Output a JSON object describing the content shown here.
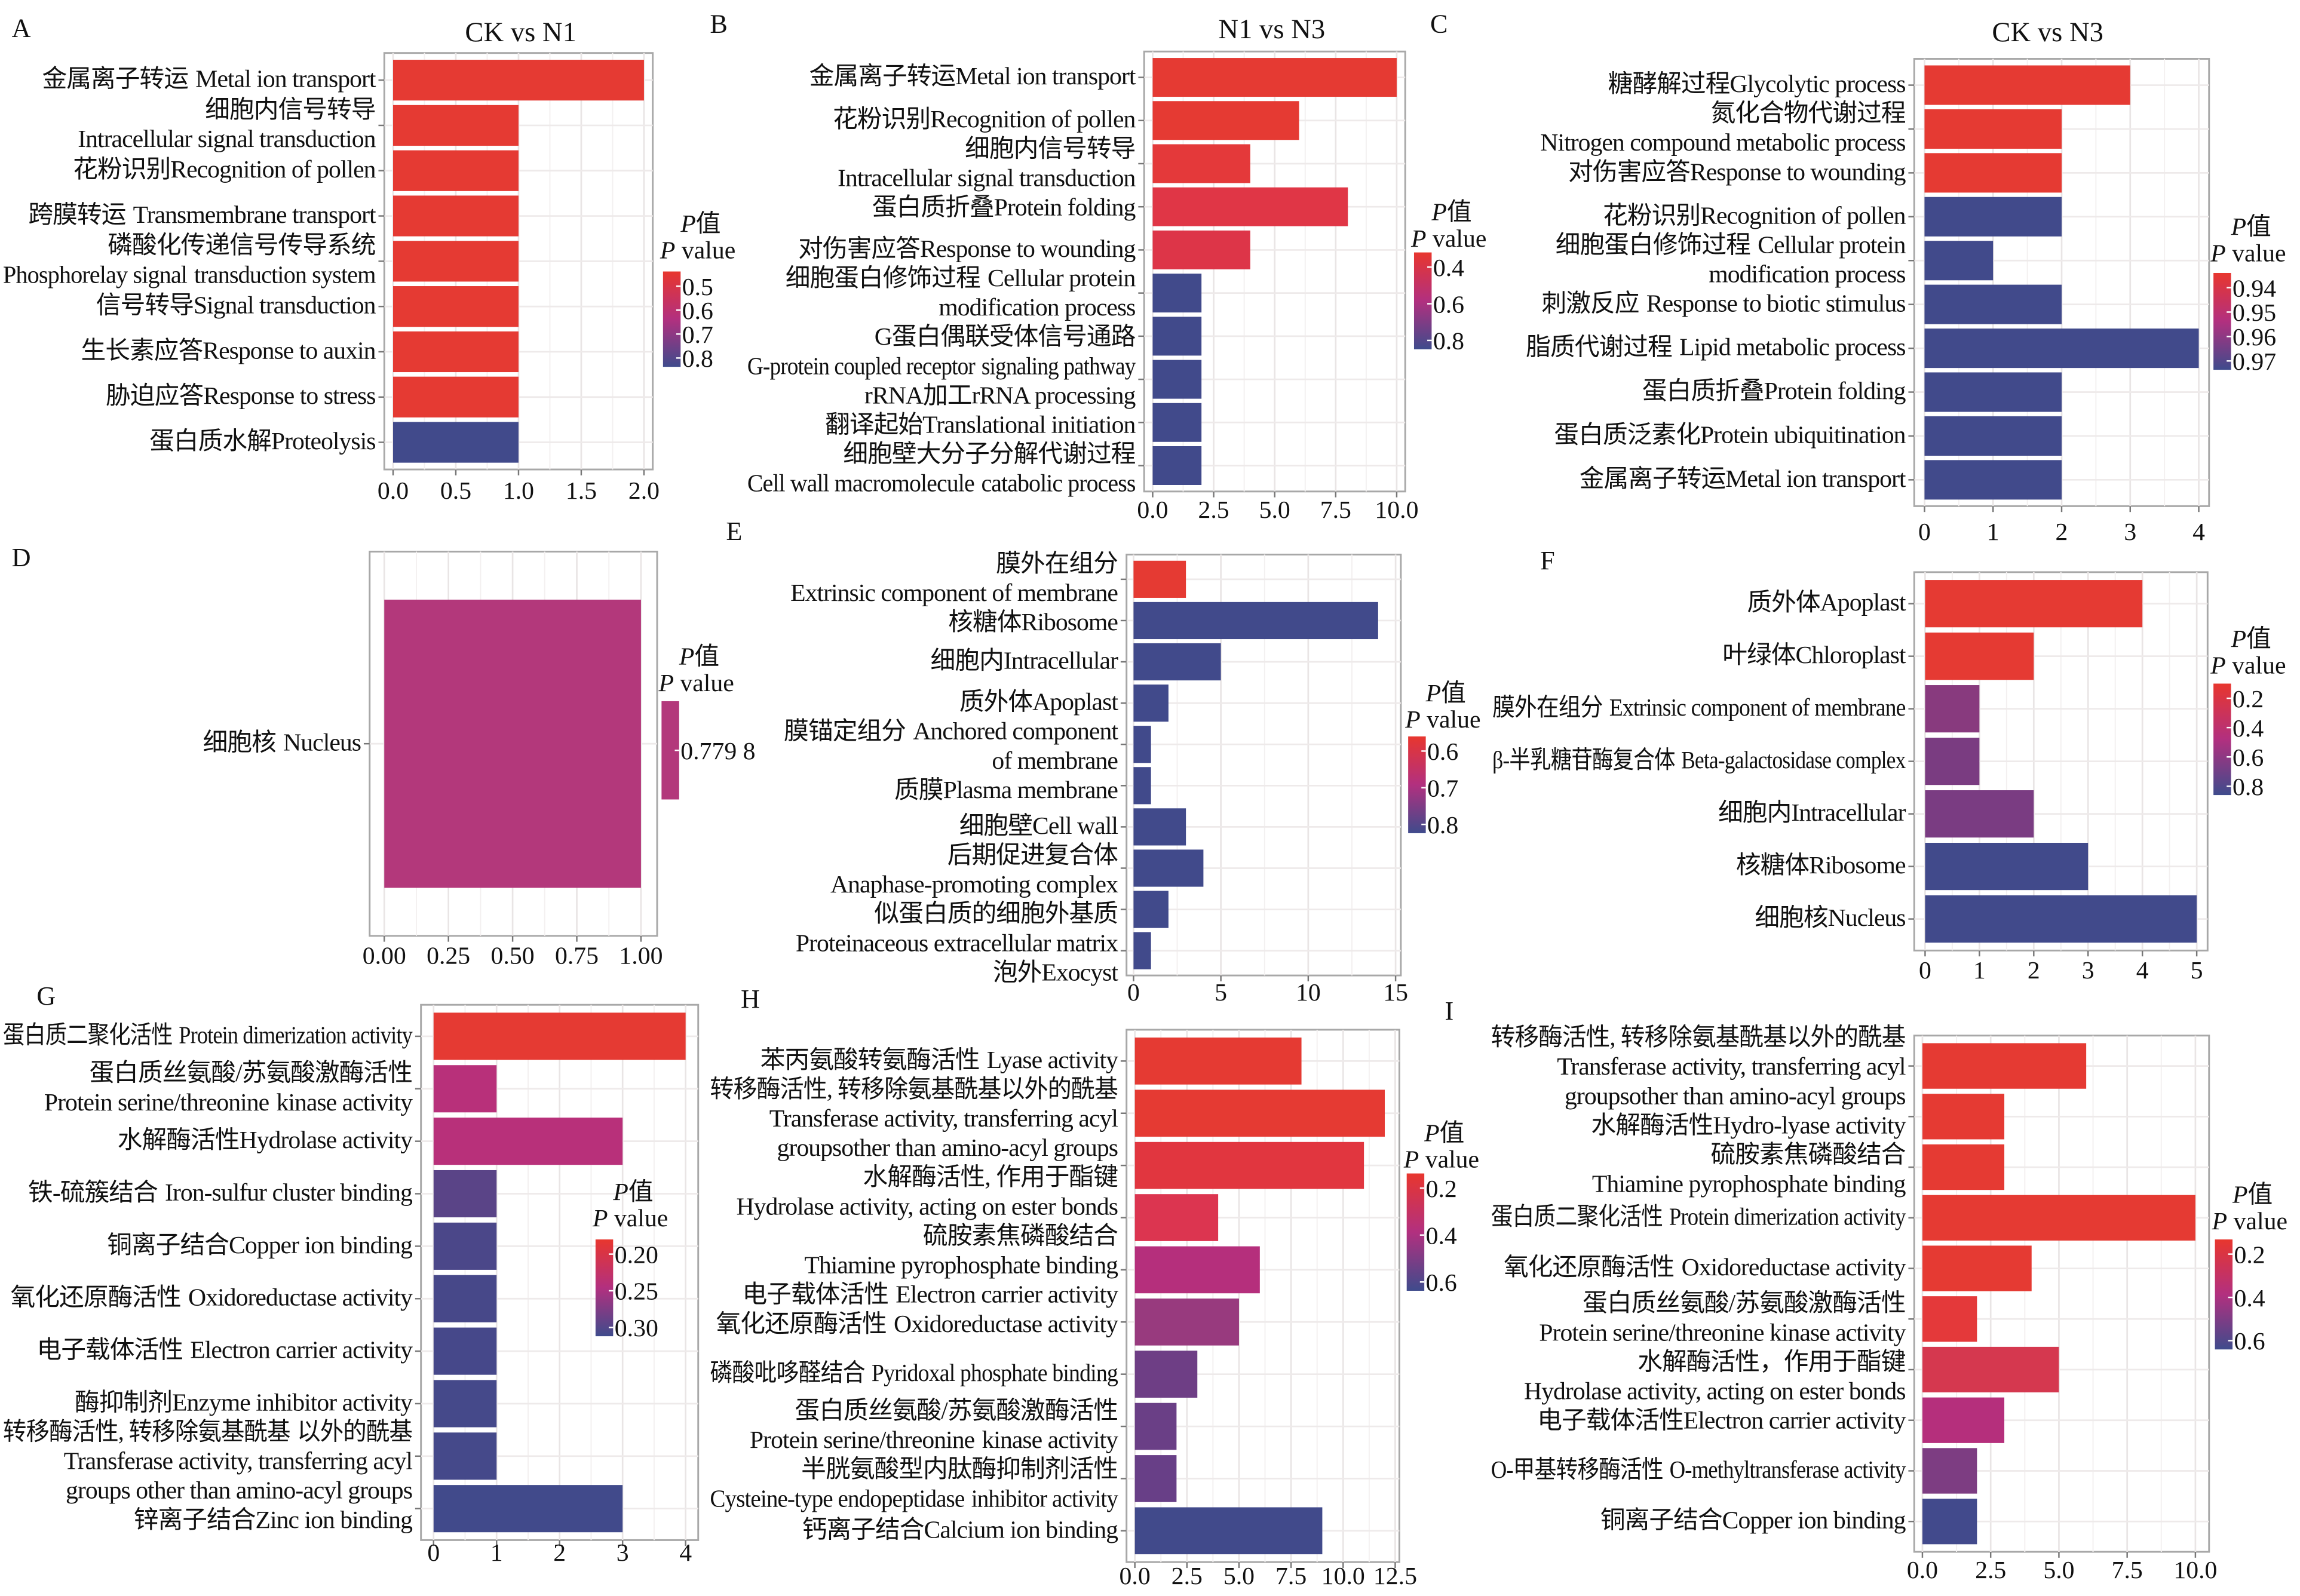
{
  "chart_data": [
    {
      "panel": "A",
      "type": "bar",
      "orientation": "horizontal",
      "title": "CK vs N1",
      "categories": [
        [
          "金属离子转运",
          "Metal ion transport"
        ],
        [
          "细胞内信号转导",
          "Intracellular signal transduction"
        ],
        [
          "花粉识别Recognition of pollen"
        ],
        [
          "跨膜转运",
          "Transmembrane transport"
        ],
        [
          "磷酸化传递信号传导系统",
          "Phosphorelay signal",
          "transduction system"
        ],
        [
          "信号转导Signal transduction"
        ],
        [
          "生长素应答Response to auxin"
        ],
        [
          "胁迫应答Response to stress"
        ],
        [
          "蛋白质水解Proteolysis"
        ]
      ],
      "values": [
        2,
        1,
        1,
        1,
        1,
        1,
        1,
        1,
        1
      ],
      "colors": [
        "#E53A33",
        "#E53A33",
        "#E53A33",
        "#E53A33",
        "#E53A33",
        "#E53A33",
        "#E53A33",
        "#E53A33",
        "#414A8B"
      ],
      "xticks": [
        "0.0",
        "0.5",
        "1.0",
        "1.5",
        "2.0"
      ],
      "xtick_values": [
        0,
        0.5,
        1,
        1.5,
        2
      ],
      "xlim": [
        -0.07,
        2.07
      ],
      "legend": {
        "title_cn": "P值",
        "title_en": "P value",
        "ticks": [
          "0.5",
          "0.6",
          "0.7",
          "0.8"
        ]
      }
    },
    {
      "panel": "B",
      "type": "bar",
      "orientation": "horizontal",
      "title": "N1 vs N3",
      "categories": [
        [
          "金属离子转运Metal ion transport"
        ],
        [
          "花粉识别Recognition of pollen"
        ],
        [
          "细胞内信号转导",
          "Intracellular signal transduction"
        ],
        [
          "蛋白质折叠Protein folding"
        ],
        [
          "对伤害应答Response to wounding"
        ],
        [
          "细胞蛋白修饰过程",
          "Cellular protein",
          "modification process"
        ],
        [
          "G蛋白偶联受体信号通路",
          "G-protein coupled receptor",
          "signaling pathway"
        ],
        [
          "rRNA加工rRNA processing"
        ],
        [
          "翻译起始Translational initiation"
        ],
        [
          "细胞壁大分子分解代谢过程",
          "Cell wall macromolecule",
          "catabolic process"
        ]
      ],
      "values": [
        10,
        6,
        4,
        8,
        4,
        2,
        2,
        2,
        2,
        2
      ],
      "colors": [
        "#E53A33",
        "#E53A33",
        "#E4393A",
        "#E03646",
        "#DD3548",
        "#414A8B",
        "#414A8B",
        "#414A8B",
        "#414A8B",
        "#414A8B"
      ],
      "xticks": [
        "0.0",
        "2.5",
        "5.0",
        "7.5",
        "10.0"
      ],
      "xtick_values": [
        0,
        2.5,
        5,
        7.5,
        10
      ],
      "xlim": [
        -0.35,
        10.35
      ],
      "legend": {
        "title_cn": "P值",
        "title_en": "P value",
        "ticks": [
          "0.4",
          "0.6",
          "0.8"
        ]
      }
    },
    {
      "panel": "C",
      "type": "bar",
      "orientation": "horizontal",
      "title": "CK vs N3",
      "categories": [
        [
          "糖酵解过程Glycolytic process"
        ],
        [
          "氮化合物代谢过程",
          "Nitrogen compound metabolic process"
        ],
        [
          "对伤害应答Response to wounding"
        ],
        [
          "花粉识别Recognition of pollen"
        ],
        [
          "细胞蛋白修饰过程",
          "Cellular protein",
          "modification process"
        ],
        [
          "刺激反应",
          "Response to biotic stimulus"
        ],
        [
          "脂质代谢过程",
          "Lipid metabolic process"
        ],
        [
          "蛋白质折叠Protein folding"
        ],
        [
          "蛋白质泛素化Protein ubiquitination"
        ],
        [
          "金属离子转运Metal ion transport"
        ]
      ],
      "values": [
        3,
        2,
        2,
        2,
        1,
        2,
        4,
        2,
        2,
        2
      ],
      "colors": [
        "#E53A33",
        "#E53A33",
        "#E53A33",
        "#414A8B",
        "#414A8B",
        "#414A8B",
        "#414A8B",
        "#414A8B",
        "#414A8B",
        "#414A8B"
      ],
      "xticks": [
        "0",
        "1",
        "2",
        "3",
        "4"
      ],
      "xtick_values": [
        0,
        1,
        2,
        3,
        4
      ],
      "xlim": [
        -0.15,
        4.15
      ],
      "legend": {
        "title_cn": "P值",
        "title_en": "P value",
        "ticks": [
          "0.94",
          "0.95",
          "0.96",
          "0.97"
        ]
      }
    },
    {
      "panel": "D",
      "type": "bar",
      "orientation": "horizontal",
      "title": "",
      "categories": [
        [
          "细胞核",
          "Nucleus"
        ]
      ],
      "values": [
        1
      ],
      "colors": [
        "#B3387B"
      ],
      "xticks": [
        "0.00",
        "0.25",
        "0.50",
        "0.75",
        "1.00"
      ],
      "xtick_values": [
        0,
        0.25,
        0.5,
        0.75,
        1
      ],
      "xlim": [
        -0.057,
        1.063
      ],
      "legend": {
        "title_cn": "P值",
        "title_en": "P value",
        "ticks": [
          "0.779 8"
        ],
        "single_color": "#B3387B"
      }
    },
    {
      "panel": "E",
      "type": "bar",
      "orientation": "horizontal",
      "title": "",
      "categories": [
        [
          "膜外在组分",
          "Extrinsic component of membrane"
        ],
        [
          "核糖体Ribosome"
        ],
        [
          "细胞内Intracellular"
        ],
        [
          "质外体Apoplast"
        ],
        [
          "膜锚定组分",
          "Anchored component",
          "of membrane"
        ],
        [
          "质膜Plasma membrane"
        ],
        [
          "细胞壁Cell wall"
        ],
        [
          "后期促进复合体",
          "Anaphase-promoting complex"
        ],
        [
          "似蛋白质的细胞外基质",
          "Proteinaceous extracellular matrix"
        ],
        [
          "泡外Exocyst"
        ]
      ],
      "values": [
        3,
        14,
        5,
        2,
        1,
        1,
        3,
        4,
        2,
        1
      ],
      "colors": [
        "#E53A33",
        "#414A8B",
        "#414A8B",
        "#414A8B",
        "#414A8B",
        "#414A8B",
        "#414A8B",
        "#414A8B",
        "#414A8B",
        "#414A8B"
      ],
      "xticks": [
        "0",
        "5",
        "10",
        "15"
      ],
      "xtick_values": [
        0,
        5,
        10,
        15
      ],
      "xlim": [
        -0.4,
        15.3
      ],
      "legend": {
        "title_cn": "P值",
        "title_en": "P value",
        "ticks": [
          "0.6",
          "0.7",
          "0.8"
        ]
      }
    },
    {
      "panel": "F",
      "type": "bar",
      "orientation": "horizontal",
      "title": "",
      "categories": [
        [
          "质外体Apoplast"
        ],
        [
          "叶绿体Chloroplast"
        ],
        [
          "膜外在组分",
          "Extrinsic component of membrane"
        ],
        [
          "β-半乳糖苷酶复合体",
          "Beta-galactosidase complex"
        ],
        [
          "细胞内Intracellular"
        ],
        [
          "核糖体Ribosome"
        ],
        [
          "细胞核Nucleus"
        ]
      ],
      "values": [
        4,
        2,
        1,
        1,
        2,
        3,
        5
      ],
      "colors": [
        "#E53A33",
        "#E53A33",
        "#883A7E",
        "#7A3C81",
        "#7A3C82",
        "#414A8B",
        "#414A8B"
      ],
      "xticks": [
        "0",
        "1",
        "2",
        "3",
        "4",
        "5"
      ],
      "xtick_values": [
        0,
        1,
        2,
        3,
        4,
        5
      ],
      "xlim": [
        -0.2,
        5.2
      ],
      "legend": {
        "title_cn": "P值",
        "title_en": "P value",
        "ticks": [
          "0.2",
          "0.4",
          "0.6",
          "0.8"
        ]
      }
    },
    {
      "panel": "G",
      "type": "bar",
      "orientation": "horizontal",
      "title": "",
      "categories": [
        [
          "蛋白质二聚化活性",
          "Protein dimerization activity"
        ],
        [
          "蛋白质丝氨酸/苏氨酸激酶活性",
          "Protein serine/threonine",
          "kinase activity"
        ],
        [
          "水解酶活性Hydrolase activity"
        ],
        [
          "铁-硫簇结合",
          "Iron-sulfur cluster binding"
        ],
        [
          "铜离子结合Copper ion binding"
        ],
        [
          "氧化还原酶活性",
          "Oxidoreductase activity"
        ],
        [
          "电子载体活性",
          "Electron carrier activity"
        ],
        [
          "酶抑制剂Enzyme inhibitor activity"
        ],
        [
          "转移酶活性, 转移除氨基酰基",
          "以外的酰基",
          "Transferase activity, transferring acyl",
          "groups other than amino-acyl groups"
        ],
        [
          "锌离子结合Zinc ion binding"
        ]
      ],
      "values": [
        4,
        1,
        3,
        1,
        1,
        1,
        1,
        1,
        1,
        3
      ],
      "colors": [
        "#E53A33",
        "#B8307A",
        "#B8307A",
        "#5A4487",
        "#4B4789",
        "#474889",
        "#46488A",
        "#45498A",
        "#45498A",
        "#414A8B"
      ],
      "xticks": [
        "0",
        "1",
        "2",
        "3",
        "4"
      ],
      "xtick_values": [
        0,
        1,
        2,
        3,
        4
      ],
      "xlim": [
        -0.2,
        4.2
      ],
      "legend": {
        "title_cn": "P值",
        "title_en": "P value",
        "ticks": [
          "0.20",
          "0.25",
          "0.30"
        ]
      }
    },
    {
      "panel": "H",
      "type": "bar",
      "orientation": "horizontal",
      "title": "",
      "categories": [
        [
          "苯丙氨酸转氨酶活性",
          "Lyase activity"
        ],
        [
          "转移酶活性, 转移除氨基酰基以外的酰基",
          "Transferase activity, transferring acyl",
          "groupsother than amino-acyl groups"
        ],
        [
          "水解酶活性, 作用于酯键",
          "Hydrolase activity, acting on ester bonds"
        ],
        [
          "硫胺素焦磷酸结合",
          "Thiamine pyrophosphate binding"
        ],
        [
          "电子载体活性",
          "Electron carrier activity"
        ],
        [
          "氧化还原酶活性",
          "Oxidoreductase activity"
        ],
        [
          "磷酸吡哆醛结合",
          "Pyridoxal phosphate binding"
        ],
        [
          "蛋白质丝氨酸/苏氨酸激酶活性",
          "Protein serine/threonine",
          "kinase activity"
        ],
        [
          "半胱氨酸型内肽酶抑制剂活性",
          "Cysteine-type endopeptidase",
          "inhibitor activity"
        ],
        [
          "钙离子结合Calcium ion binding"
        ]
      ],
      "values": [
        8,
        12,
        11,
        4,
        6,
        5,
        3,
        2,
        2,
        9
      ],
      "colors": [
        "#E53A33",
        "#E53A33",
        "#E1363F",
        "#DC3550",
        "#B52F7C",
        "#983A7E",
        "#6E3E85",
        "#6A3F86",
        "#683F87",
        "#414A8B"
      ],
      "xticks": [
        "0.0",
        "2.5",
        "5.0",
        "7.5",
        "10.0",
        "12.5"
      ],
      "xtick_values": [
        0,
        2.5,
        5,
        7.5,
        10,
        12.5
      ],
      "xlim": [
        -0.4,
        12.7
      ],
      "legend": {
        "title_cn": "P值",
        "title_en": "P value",
        "ticks": [
          "0.2",
          "0.4",
          "0.6"
        ]
      }
    },
    {
      "panel": "I",
      "type": "bar",
      "orientation": "horizontal",
      "title": "",
      "categories": [
        [
          "转移酶活性, 转移除氨基酰基以外的酰基",
          "Transferase activity, transferring acyl",
          "groupsother than amino-acyl groups"
        ],
        [
          "水解酶活性Hydro-lyase activity"
        ],
        [
          "硫胺素焦磷酸结合",
          "Thiamine pyrophosphate binding"
        ],
        [
          "蛋白质二聚化活性",
          "Protein dimerization activity"
        ],
        [
          "氧化还原酶活性",
          "Oxidoreductase activity"
        ],
        [
          "蛋白质丝氨酸/苏氨酸激酶活性",
          "Protein serine/threonine kinase activity"
        ],
        [
          "水解酶活性，作用于酯键",
          "Hydrolase activity, acting on ester bonds"
        ],
        [
          "电子载体活性Electron carrier activity"
        ],
        [
          "O-甲基转移酶活性",
          "O-methyltransferase activity"
        ],
        [
          "铜离子结合Copper ion binding"
        ]
      ],
      "values": [
        6,
        3,
        3,
        10,
        4,
        2,
        5,
        3,
        2,
        2
      ],
      "colors": [
        "#E53A33",
        "#E53A33",
        "#E53A33",
        "#E53A33",
        "#E53A33",
        "#E4393A",
        "#D5384F",
        "#B52F7C",
        "#7D3D82",
        "#424A8C"
      ],
      "xticks": [
        "0.0",
        "2.5",
        "5.0",
        "7.5",
        "10.0"
      ],
      "xtick_values": [
        0,
        2.5,
        5,
        7.5,
        10
      ],
      "xlim": [
        -0.3,
        10.5
      ],
      "legend": {
        "title_cn": "P值",
        "title_en": "P value",
        "ticks": [
          "0.2",
          "0.4",
          "0.6"
        ]
      }
    }
  ],
  "gradient": {
    "high": "#E8362E",
    "mid": "#B2307F",
    "low": "#3F4B8C"
  }
}
